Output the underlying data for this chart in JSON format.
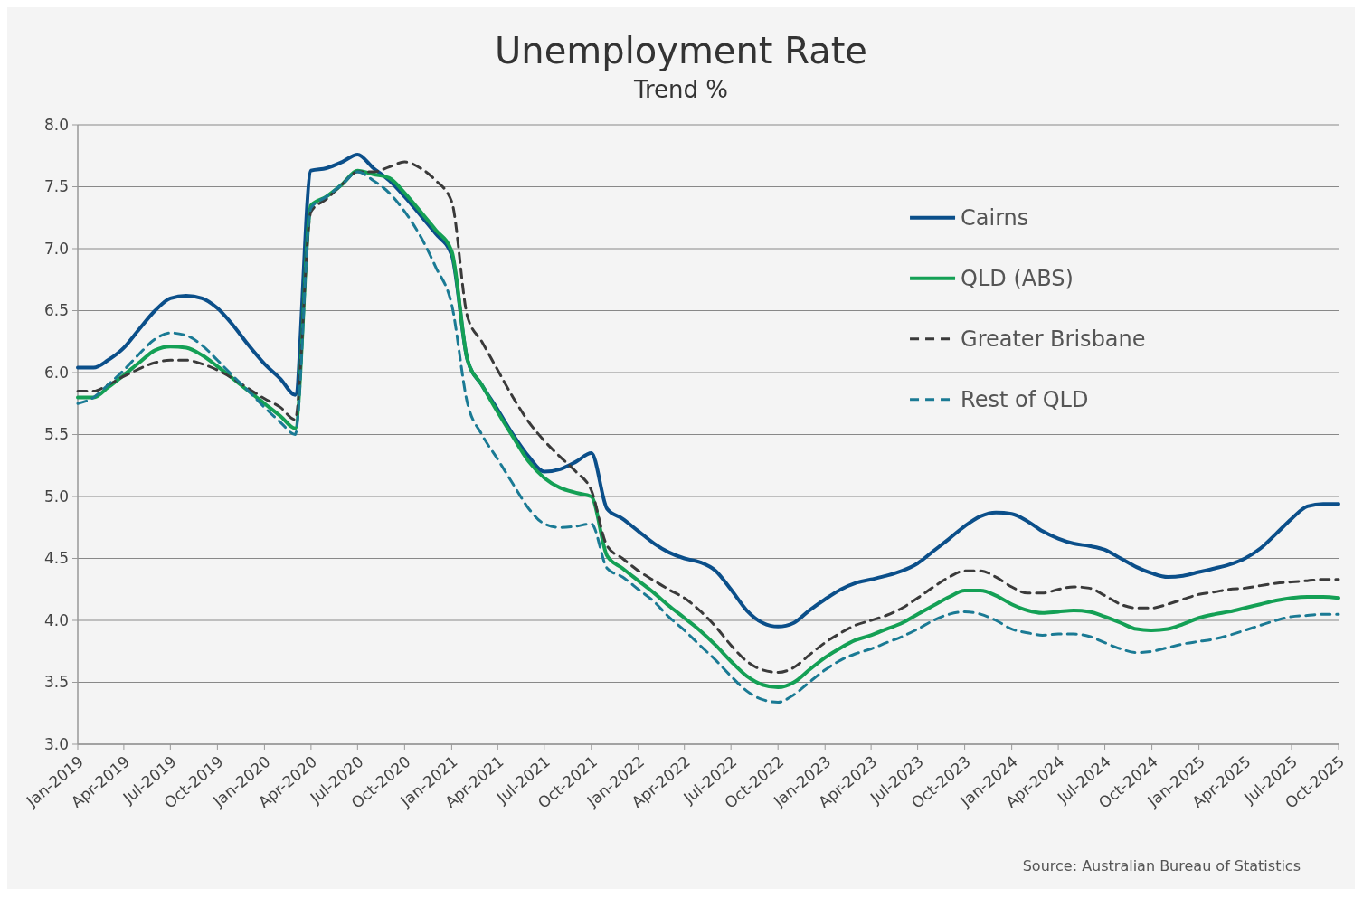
{
  "chart_data": {
    "type": "line",
    "title": "Unemployment Rate",
    "subtitle": "Trend %",
    "x": [
      "2019-01",
      "2019-02",
      "2019-03",
      "2019-04",
      "2019-05",
      "2019-06",
      "2019-07",
      "2019-08",
      "2019-09",
      "2019-10",
      "2019-11",
      "2019-12",
      "2020-01",
      "2020-02",
      "2020-03",
      "2020-04",
      "2020-05",
      "2020-06",
      "2020-07",
      "2020-08",
      "2020-09",
      "2020-10",
      "2020-11",
      "2020-12",
      "2021-01",
      "2021-02",
      "2021-03",
      "2021-04",
      "2021-05",
      "2021-06",
      "2021-07",
      "2021-08",
      "2021-09",
      "2021-10",
      "2021-11",
      "2021-12",
      "2022-01",
      "2022-02",
      "2022-03",
      "2022-04",
      "2022-05",
      "2022-06",
      "2022-07",
      "2022-08",
      "2022-09",
      "2022-10",
      "2022-11",
      "2022-12",
      "2023-01",
      "2023-02",
      "2023-03",
      "2023-04",
      "2023-05",
      "2023-06",
      "2023-07",
      "2023-08",
      "2023-09",
      "2023-10",
      "2023-11",
      "2023-12",
      "2024-01",
      "2024-02",
      "2024-03",
      "2024-04",
      "2024-05",
      "2024-06",
      "2024-07",
      "2024-08",
      "2024-09",
      "2024-10",
      "2024-11",
      "2024-12",
      "2025-01",
      "2025-02",
      "2025-03",
      "2025-04",
      "2025-05",
      "2025-06",
      "2025-07",
      "2025-08",
      "2025-09",
      "2025-10"
    ],
    "series": [
      {
        "name": "Cairns",
        "color": "#0b4f8a",
        "line_style": "solid",
        "values": [
          6.04,
          6.04,
          6.1,
          6.2,
          6.35,
          6.5,
          6.6,
          6.62,
          6.6,
          6.52,
          6.38,
          6.22,
          6.07,
          5.95,
          5.82,
          7.63,
          7.65,
          7.7,
          7.76,
          7.65,
          7.55,
          7.42,
          7.27,
          7.12,
          6.95,
          6.1,
          5.9,
          5.7,
          5.5,
          5.32,
          5.2,
          5.22,
          5.28,
          5.35,
          4.9,
          4.82,
          4.72,
          4.62,
          4.55,
          4.5,
          4.47,
          4.4,
          4.25,
          4.08,
          3.98,
          3.95,
          3.98,
          4.08,
          4.17,
          4.25,
          4.3,
          4.33,
          4.36,
          4.4,
          4.46,
          4.56,
          4.66,
          4.76,
          4.84,
          4.87,
          4.86,
          4.8,
          4.72,
          4.66,
          4.62,
          4.6,
          4.57,
          4.5,
          4.43,
          4.38,
          4.35,
          4.36,
          4.39,
          4.42,
          4.45,
          4.5,
          4.58,
          4.7,
          4.82,
          4.92,
          4.94,
          4.94
        ]
      },
      {
        "name": "QLD (ABS)",
        "color": "#14a055",
        "line_style": "solid",
        "values": [
          5.8,
          5.8,
          5.88,
          5.98,
          6.08,
          6.18,
          6.21,
          6.2,
          6.14,
          6.05,
          5.95,
          5.85,
          5.75,
          5.65,
          5.55,
          7.35,
          7.42,
          7.52,
          7.63,
          7.6,
          7.57,
          7.45,
          7.3,
          7.15,
          6.98,
          6.1,
          5.9,
          5.68,
          5.48,
          5.28,
          5.15,
          5.07,
          5.03,
          5.0,
          4.52,
          4.42,
          4.32,
          4.22,
          4.12,
          4.02,
          3.92,
          3.8,
          3.67,
          3.55,
          3.48,
          3.46,
          3.5,
          3.6,
          3.7,
          3.78,
          3.84,
          3.88,
          3.93,
          3.98,
          4.05,
          4.12,
          4.19,
          4.24,
          4.24,
          4.2,
          4.13,
          4.08,
          4.06,
          4.07,
          4.08,
          4.07,
          4.03,
          3.98,
          3.93,
          3.92,
          3.93,
          3.97,
          4.02,
          4.05,
          4.07,
          4.1,
          4.13,
          4.16,
          4.18,
          4.19,
          4.19,
          4.18
        ]
      },
      {
        "name": "Greater Brisbane",
        "color": "#3a3a3a",
        "line_style": "dashed",
        "values": [
          5.85,
          5.85,
          5.9,
          5.97,
          6.03,
          6.08,
          6.1,
          6.1,
          6.07,
          6.02,
          5.95,
          5.87,
          5.79,
          5.72,
          5.62,
          7.3,
          7.4,
          7.52,
          7.62,
          7.62,
          7.66,
          7.7,
          7.65,
          7.55,
          7.38,
          6.45,
          6.25,
          6.02,
          5.8,
          5.6,
          5.45,
          5.32,
          5.2,
          5.05,
          4.6,
          4.5,
          4.4,
          4.32,
          4.25,
          4.18,
          4.08,
          3.95,
          3.8,
          3.67,
          3.6,
          3.58,
          3.62,
          3.72,
          3.82,
          3.9,
          3.96,
          4.0,
          4.04,
          4.1,
          4.18,
          4.27,
          4.35,
          4.4,
          4.4,
          4.35,
          4.27,
          4.22,
          4.22,
          4.25,
          4.27,
          4.26,
          4.2,
          4.13,
          4.1,
          4.1,
          4.13,
          4.17,
          4.21,
          4.23,
          4.25,
          4.26,
          4.28,
          4.3,
          4.31,
          4.32,
          4.33,
          4.33
        ]
      },
      {
        "name": "Rest of QLD",
        "color": "#1a7a94",
        "line_style": "dashed",
        "values": [
          5.75,
          5.8,
          5.9,
          6.02,
          6.15,
          6.27,
          6.32,
          6.3,
          6.22,
          6.1,
          5.97,
          5.85,
          5.72,
          5.6,
          5.5,
          7.33,
          7.42,
          7.52,
          7.62,
          7.55,
          7.45,
          7.3,
          7.1,
          6.85,
          6.55,
          5.75,
          5.5,
          5.3,
          5.1,
          4.9,
          4.78,
          4.75,
          4.76,
          4.78,
          4.42,
          4.35,
          4.25,
          4.15,
          4.03,
          3.92,
          3.8,
          3.68,
          3.55,
          3.43,
          3.36,
          3.34,
          3.4,
          3.5,
          3.6,
          3.68,
          3.73,
          3.77,
          3.82,
          3.87,
          3.93,
          4.0,
          4.05,
          4.07,
          4.05,
          4.0,
          3.93,
          3.9,
          3.88,
          3.89,
          3.89,
          3.87,
          3.82,
          3.77,
          3.74,
          3.75,
          3.78,
          3.81,
          3.83,
          3.85,
          3.88,
          3.92,
          3.96,
          4.0,
          4.03,
          4.04,
          4.05,
          4.05
        ]
      }
    ],
    "xlim": [
      "2019-01",
      "2025-10"
    ],
    "xticks": [
      {
        "value": "2019-01",
        "label": "Jan-2019"
      },
      {
        "value": "2019-04",
        "label": "Apr-2019"
      },
      {
        "value": "2019-07",
        "label": "Jul-2019"
      },
      {
        "value": "2019-10",
        "label": "Oct-2019"
      },
      {
        "value": "2020-01",
        "label": "Jan-2020"
      },
      {
        "value": "2020-04",
        "label": "Apr-2020"
      },
      {
        "value": "2020-07",
        "label": "Jul-2020"
      },
      {
        "value": "2020-10",
        "label": "Oct-2020"
      },
      {
        "value": "2021-01",
        "label": "Jan-2021"
      },
      {
        "value": "2021-04",
        "label": "Apr-2021"
      },
      {
        "value": "2021-07",
        "label": "Jul-2021"
      },
      {
        "value": "2021-10",
        "label": "Oct-2021"
      },
      {
        "value": "2022-01",
        "label": "Jan-2022"
      },
      {
        "value": "2022-04",
        "label": "Apr-2022"
      },
      {
        "value": "2022-07",
        "label": "Jul-2022"
      },
      {
        "value": "2022-10",
        "label": "Oct-2022"
      },
      {
        "value": "2023-01",
        "label": "Jan-2023"
      },
      {
        "value": "2023-04",
        "label": "Apr-2023"
      },
      {
        "value": "2023-07",
        "label": "Jul-2023"
      },
      {
        "value": "2023-10",
        "label": "Oct-2023"
      },
      {
        "value": "2024-01",
        "label": "Jan-2024"
      },
      {
        "value": "2024-04",
        "label": "Apr-2024"
      },
      {
        "value": "2024-07",
        "label": "Jul-2024"
      },
      {
        "value": "2024-10",
        "label": "Oct-2024"
      },
      {
        "value": "2025-01",
        "label": "Jan-2025"
      },
      {
        "value": "2025-04",
        "label": "Apr-2025"
      },
      {
        "value": "2025-07",
        "label": "Jul-2025"
      },
      {
        "value": "2025-10",
        "label": "Oct-2025"
      }
    ],
    "ylim": [
      3.0,
      8.0
    ],
    "yticks": [
      {
        "value": 3,
        "label": "3.0"
      },
      {
        "value": 3.5,
        "label": "3.5"
      },
      {
        "value": 4,
        "label": "4.0"
      },
      {
        "value": 4.5,
        "label": "4.5"
      },
      {
        "value": 5,
        "label": "5.0"
      },
      {
        "value": 5.5,
        "label": "5.5"
      },
      {
        "value": 6,
        "label": "6.0"
      },
      {
        "value": 6.5,
        "label": "6.5"
      },
      {
        "value": 7,
        "label": "7.0"
      },
      {
        "value": 7.5,
        "label": "7.5"
      },
      {
        "value": 8,
        "label": "8.0"
      }
    ],
    "grid": "y",
    "legend": "right",
    "marker": "none",
    "annotations": [
      "Source: Australian Bureau of Statistics"
    ]
  }
}
